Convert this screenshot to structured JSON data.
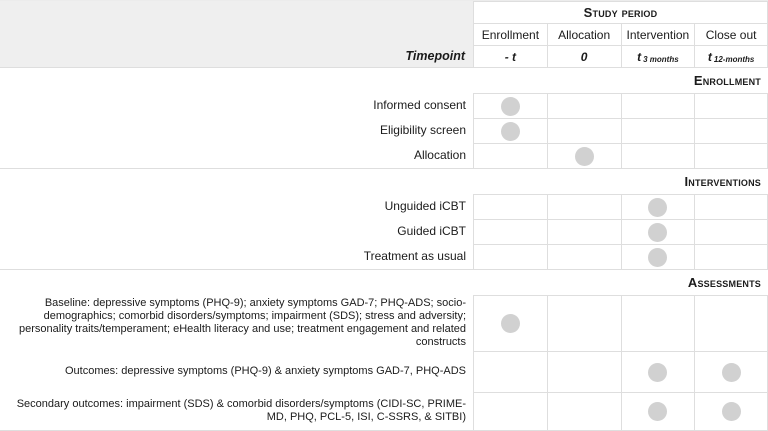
{
  "header": {
    "study_period": "Study period",
    "columns": [
      "Enrollment",
      "Allocation",
      "Intervention",
      "Close out"
    ],
    "timepoint_label": "Timepoint",
    "timepoints": [
      {
        "symbol": "- t",
        "subscript": ""
      },
      {
        "symbol": "0",
        "subscript": ""
      },
      {
        "symbol": "t",
        "subscript": "3 months"
      },
      {
        "symbol": "t",
        "subscript": "12-months"
      }
    ]
  },
  "sections": [
    {
      "title": "Enrollment",
      "rows": [
        {
          "label": "Informed consent",
          "dots": [
            true,
            false,
            false,
            false
          ]
        },
        {
          "label": "Eligibility screen",
          "dots": [
            true,
            false,
            false,
            false
          ]
        },
        {
          "label": "Allocation",
          "dots": [
            false,
            true,
            false,
            false
          ]
        }
      ]
    },
    {
      "title": "Interventions",
      "rows": [
        {
          "label": "Unguided iCBT",
          "dots": [
            false,
            false,
            true,
            false
          ]
        },
        {
          "label": "Guided iCBT",
          "dots": [
            false,
            false,
            true,
            false
          ]
        },
        {
          "label": "Treatment as usual",
          "dots": [
            false,
            false,
            true,
            false
          ]
        }
      ]
    },
    {
      "title": "Assessments",
      "rows": [
        {
          "label": "Baseline: depressive symptoms (PHQ-9); anxiety symptoms GAD-7; PHQ-ADS; socio-demographics; comorbid disorders/symptoms; impairment (SDS); stress and adversity; personality traits/temperament; eHealth literacy and use; treatment engagement and related constructs",
          "dots": [
            true,
            false,
            false,
            false
          ]
        },
        {
          "label": "Outcomes: depressive symptoms (PHQ-9) & anxiety symptoms GAD-7, PHQ-ADS",
          "dots": [
            false,
            false,
            true,
            true
          ]
        },
        {
          "label": "Secondary outcomes: impairment (SDS) & comorbid disorders/symptoms (CIDI-SC, PRIME-MD, PHQ, PCL-5, ISI, C-SSRS, & SITBI)",
          "dots": [
            false,
            false,
            true,
            true
          ]
        }
      ]
    }
  ],
  "colors": {
    "dot": "#d1d1d1",
    "header_bg": "#efefef",
    "border": "#dedede"
  }
}
